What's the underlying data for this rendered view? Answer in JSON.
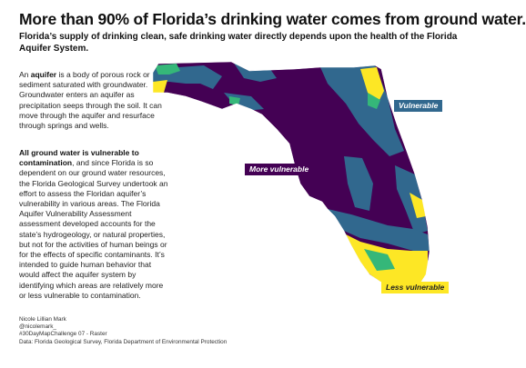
{
  "title": "More than 90% of Florida’s drinking water comes from ground water.",
  "subtitle": "Florida’s supply of drinking clean, safe drinking water directly depends upon the health of the Florida Aquifer System.",
  "intro": {
    "term": "aquifer",
    "before": "An ",
    "after": " is a body of porous rock or sediment saturated with groundwater. Groundwater enters an aquifer as precipitation seeps through the soil. It can move through the aquifer and resurface through springs and wells."
  },
  "body": {
    "lead": "All ground water is vulnerable to contamination",
    "text": ", and since Florida is so dependent on our ground water resources, the Florida Geological Survey undertook an effort to assess the Floridan aquifer’s vulnerability in various areas. The Florida Aquifer Vulnerability Assessment assessment developed accounts for the state’s hydrogeology, or natural properties, but not for the activities of human beings or for the effects of specific contaminants. It’s intended to guide human behavior that would affect the aquifer system by identifying which areas are relatively more or less vulnerable to contamination."
  },
  "credits": {
    "author": "Nicole Lillian Mark",
    "handle": "@nicolemark_",
    "challenge": "#30DayMapChallenge 07 - Raster",
    "data": "Data: Florida Geological Survey, Florida Department of Environmental Protection"
  },
  "map": {
    "labels": {
      "vulnerable": "Vulnerable",
      "more_vulnerable": "More vulnerable",
      "less_vulnerable": "Less vulnerable"
    },
    "colors": {
      "more_vulnerable": "#440154",
      "vulnerable": "#31688e",
      "moderate": "#35b779",
      "less_vulnerable": "#fde725"
    }
  }
}
